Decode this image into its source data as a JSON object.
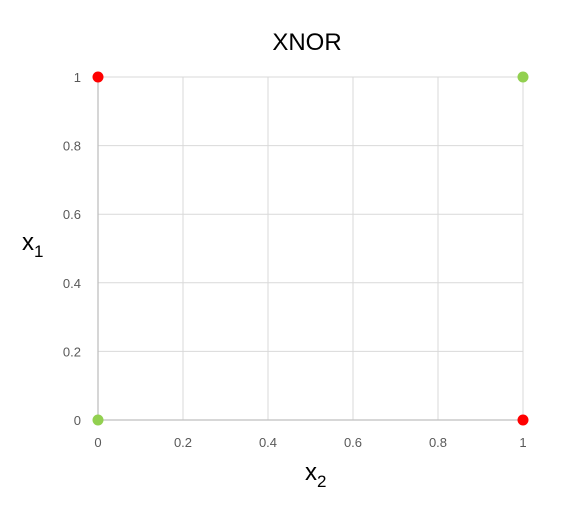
{
  "chart_data": {
    "type": "scatter",
    "title": "XNOR",
    "xlabel": {
      "base": "x",
      "sub": "2"
    },
    "ylabel": {
      "base": "x",
      "sub": "1"
    },
    "xlim": [
      0,
      1
    ],
    "ylim": [
      0,
      1
    ],
    "x_ticks": [
      "0",
      "0.2",
      "0.4",
      "0.6",
      "0.8",
      "1"
    ],
    "y_ticks": [
      "0",
      "0.2",
      "0.4",
      "0.6",
      "0.8",
      "1"
    ],
    "grid": true,
    "legend": "none",
    "points": [
      {
        "x": 0,
        "y": 0,
        "color": "#92d050"
      },
      {
        "x": 1,
        "y": 1,
        "color": "#92d050"
      },
      {
        "x": 0,
        "y": 1,
        "color": "#ff0000"
      },
      {
        "x": 1,
        "y": 0,
        "color": "#ff0000"
      }
    ]
  },
  "colors": {
    "true_class": "#92d050",
    "false_class": "#ff0000",
    "grid": "#d9d9d9",
    "axis": "#bfbfbf",
    "tick_text": "#595959"
  }
}
